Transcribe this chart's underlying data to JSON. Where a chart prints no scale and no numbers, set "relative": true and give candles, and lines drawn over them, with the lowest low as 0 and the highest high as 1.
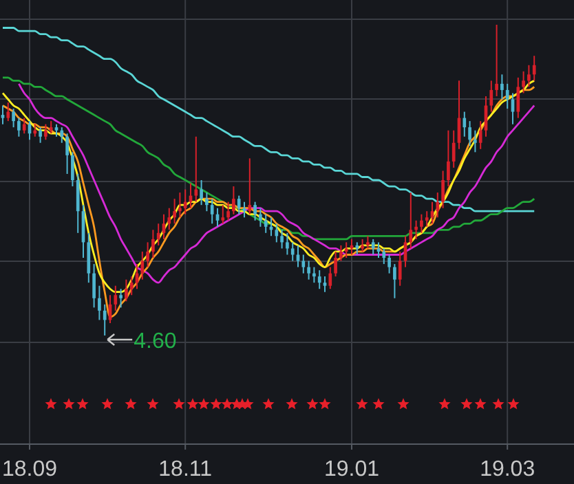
{
  "chart_data": {
    "type": "candlestick",
    "relative": true,
    "grid": true,
    "categories": [
      null,
      null,
      null,
      null,
      null,
      "18.09",
      null,
      null,
      null,
      null,
      null,
      null,
      null,
      null,
      null,
      null,
      null,
      null,
      null,
      null,
      null,
      null,
      null,
      null,
      null,
      null,
      null,
      null,
      null,
      null,
      null,
      null,
      null,
      null,
      "18.11",
      null,
      null,
      null,
      null,
      null,
      null,
      null,
      null,
      null,
      null,
      null,
      null,
      null,
      null,
      null,
      null,
      null,
      null,
      null,
      null,
      null,
      null,
      null,
      null,
      null,
      null,
      null,
      null,
      null,
      null,
      "19.01",
      null,
      null,
      null,
      null,
      null,
      null,
      null,
      null,
      null,
      null,
      null,
      null,
      null,
      null,
      null,
      null,
      null,
      null,
      null,
      null,
      null,
      null,
      null,
      null,
      null,
      null,
      null,
      null,
      "19.03",
      null,
      null,
      null,
      null,
      null
    ],
    "ohlc": [
      [
        0.71,
        0.74,
        0.68,
        0.7
      ],
      [
        0.7,
        0.75,
        0.69,
        0.72
      ],
      [
        0.72,
        0.73,
        0.67,
        0.69
      ],
      [
        0.69,
        0.7,
        0.64,
        0.66
      ],
      [
        0.66,
        0.7,
        0.65,
        0.68
      ],
      [
        0.68,
        0.69,
        0.63,
        0.65
      ],
      [
        0.65,
        0.68,
        0.64,
        0.66
      ],
      [
        0.66,
        0.67,
        0.62,
        0.64
      ],
      [
        0.64,
        0.68,
        0.63,
        0.66
      ],
      [
        0.66,
        0.69,
        0.65,
        0.67
      ],
      [
        0.67,
        0.68,
        0.64,
        0.66
      ],
      [
        0.66,
        0.67,
        0.62,
        0.64
      ],
      [
        0.64,
        0.65,
        0.52,
        0.58
      ],
      [
        0.58,
        0.59,
        0.48,
        0.5
      ],
      [
        0.5,
        0.52,
        0.33,
        0.4
      ],
      [
        0.4,
        0.42,
        0.25,
        0.3
      ],
      [
        0.3,
        0.33,
        0.17,
        0.2
      ],
      [
        0.2,
        0.23,
        0.09,
        0.12
      ],
      [
        0.12,
        0.16,
        0.05,
        0.08
      ],
      [
        0.08,
        0.1,
        0,
        0.05
      ],
      [
        0.05,
        0.13,
        0.04,
        0.1
      ],
      [
        0.1,
        0.16,
        0.08,
        0.13
      ],
      [
        0.13,
        0.15,
        0.09,
        0.12
      ],
      [
        0.12,
        0.18,
        0.11,
        0.15
      ],
      [
        0.15,
        0.19,
        0.13,
        0.17
      ],
      [
        0.17,
        0.23,
        0.15,
        0.2
      ],
      [
        0.2,
        0.27,
        0.18,
        0.24
      ],
      [
        0.24,
        0.3,
        0.22,
        0.27
      ],
      [
        0.27,
        0.34,
        0.25,
        0.31
      ],
      [
        0.31,
        0.36,
        0.29,
        0.33
      ],
      [
        0.33,
        0.39,
        0.31,
        0.36
      ],
      [
        0.36,
        0.41,
        0.34,
        0.38
      ],
      [
        0.38,
        0.44,
        0.36,
        0.4
      ],
      [
        0.4,
        0.46,
        0.38,
        0.41
      ],
      [
        0.41,
        0.47,
        0.39,
        0.43
      ],
      [
        0.43,
        0.49,
        0.41,
        0.45
      ],
      [
        0.45,
        0.64,
        0.43,
        0.47
      ],
      [
        0.47,
        0.5,
        0.42,
        0.44
      ],
      [
        0.44,
        0.46,
        0.4,
        0.42
      ],
      [
        0.42,
        0.44,
        0.36,
        0.39
      ],
      [
        0.39,
        0.41,
        0.35,
        0.37
      ],
      [
        0.37,
        0.42,
        0.36,
        0.38
      ],
      [
        0.38,
        0.43,
        0.37,
        0.4
      ],
      [
        0.4,
        0.48,
        0.39,
        0.44
      ],
      [
        0.44,
        0.45,
        0.39,
        0.41
      ],
      [
        0.41,
        0.43,
        0.38,
        0.4
      ],
      [
        0.4,
        0.57,
        0.39,
        0.42
      ],
      [
        0.42,
        0.43,
        0.37,
        0.39
      ],
      [
        0.39,
        0.41,
        0.35,
        0.37
      ],
      [
        0.37,
        0.39,
        0.33,
        0.35
      ],
      [
        0.35,
        0.38,
        0.32,
        0.34
      ],
      [
        0.34,
        0.36,
        0.3,
        0.32
      ],
      [
        0.32,
        0.34,
        0.28,
        0.3
      ],
      [
        0.3,
        0.33,
        0.26,
        0.28
      ],
      [
        0.28,
        0.3,
        0.24,
        0.26
      ],
      [
        0.26,
        0.29,
        0.22,
        0.24
      ],
      [
        0.24,
        0.26,
        0.2,
        0.22
      ],
      [
        0.22,
        0.24,
        0.18,
        0.2
      ],
      [
        0.2,
        0.22,
        0.17,
        0.19
      ],
      [
        0.19,
        0.21,
        0.15,
        0.17
      ],
      [
        0.17,
        0.19,
        0.14,
        0.16
      ],
      [
        0.16,
        0.22,
        0.15,
        0.2
      ],
      [
        0.2,
        0.27,
        0.19,
        0.25
      ],
      [
        0.25,
        0.29,
        0.24,
        0.27
      ],
      [
        0.27,
        0.3,
        0.25,
        0.28
      ],
      [
        0.28,
        0.31,
        0.26,
        0.29
      ],
      [
        0.29,
        0.3,
        0.26,
        0.28
      ],
      [
        0.28,
        0.31,
        0.27,
        0.29
      ],
      [
        0.29,
        0.32,
        0.28,
        0.3
      ],
      [
        0.3,
        0.31,
        0.26,
        0.28
      ],
      [
        0.28,
        0.3,
        0.25,
        0.27
      ],
      [
        0.27,
        0.28,
        0.23,
        0.25
      ],
      [
        0.25,
        0.26,
        0.2,
        0.22
      ],
      [
        0.22,
        0.23,
        0.12,
        0.18
      ],
      [
        0.18,
        0.27,
        0.16,
        0.24
      ],
      [
        0.24,
        0.32,
        0.22,
        0.3
      ],
      [
        0.3,
        0.46,
        0.28,
        0.34
      ],
      [
        0.34,
        0.37,
        0.31,
        0.35
      ],
      [
        0.35,
        0.39,
        0.33,
        0.37
      ],
      [
        0.37,
        0.4,
        0.35,
        0.38
      ],
      [
        0.38,
        0.43,
        0.36,
        0.4
      ],
      [
        0.4,
        0.46,
        0.38,
        0.43
      ],
      [
        0.43,
        0.53,
        0.41,
        0.5
      ],
      [
        0.5,
        0.66,
        0.48,
        0.56
      ],
      [
        0.56,
        0.66,
        0.54,
        0.62
      ],
      [
        0.62,
        0.82,
        0.6,
        0.7
      ],
      [
        0.7,
        0.72,
        0.64,
        0.67
      ],
      [
        0.67,
        0.69,
        0.61,
        0.63
      ],
      [
        0.63,
        0.66,
        0.59,
        0.62
      ],
      [
        0.62,
        0.69,
        0.6,
        0.66
      ],
      [
        0.66,
        0.77,
        0.64,
        0.74
      ],
      [
        0.74,
        0.82,
        0.72,
        0.79
      ],
      [
        0.79,
        1,
        0.77,
        0.81
      ],
      [
        0.81,
        0.84,
        0.76,
        0.79
      ],
      [
        0.79,
        0.81,
        0.73,
        0.76
      ],
      [
        0.76,
        0.78,
        0.68,
        0.72
      ],
      [
        0.72,
        0.83,
        0.7,
        0.8
      ],
      [
        0.8,
        0.85,
        0.78,
        0.82
      ],
      [
        0.82,
        0.87,
        0.8,
        0.84
      ],
      [
        0.84,
        0.9,
        0.82,
        0.87
      ]
    ],
    "series": [
      {
        "type": "line",
        "color": "#5ad6d6",
        "values": [
          0.99,
          0.99,
          0.99,
          0.98,
          0.98,
          0.98,
          0.98,
          0.97,
          0.97,
          0.96,
          0.96,
          0.95,
          0.95,
          0.94,
          0.93,
          0.93,
          0.92,
          0.91,
          0.9,
          0.89,
          0.89,
          0.88,
          0.86,
          0.85,
          0.84,
          0.82,
          0.81,
          0.8,
          0.79,
          0.77,
          0.76,
          0.75,
          0.74,
          0.73,
          0.72,
          0.71,
          0.7,
          0.7,
          0.69,
          0.68,
          0.67,
          0.66,
          0.65,
          0.64,
          0.64,
          0.63,
          0.62,
          0.61,
          0.61,
          0.6,
          0.59,
          0.59,
          0.58,
          0.58,
          0.57,
          0.57,
          0.56,
          0.56,
          0.55,
          0.55,
          0.54,
          0.54,
          0.53,
          0.53,
          0.52,
          0.52,
          0.52,
          0.51,
          0.51,
          0.5,
          0.5,
          0.49,
          0.48,
          0.48,
          0.47,
          0.47,
          0.46,
          0.45,
          0.45,
          0.44,
          0.44,
          0.43,
          0.43,
          0.43,
          0.42,
          0.42,
          0.41,
          0.41,
          0.4,
          0.4,
          0.4,
          0.4,
          0.4,
          0.4,
          0.4,
          0.4,
          0.4,
          0.4,
          0.4,
          0.4
        ]
      },
      {
        "type": "line",
        "color": "#22a83a",
        "values": [
          0.83,
          0.83,
          0.82,
          0.82,
          0.81,
          0.81,
          0.8,
          0.8,
          0.79,
          0.78,
          0.77,
          0.77,
          0.76,
          0.75,
          0.74,
          0.73,
          0.72,
          0.71,
          0.7,
          0.69,
          0.68,
          0.66,
          0.65,
          0.64,
          0.63,
          0.62,
          0.61,
          0.59,
          0.58,
          0.57,
          0.55,
          0.54,
          0.52,
          0.51,
          0.5,
          0.49,
          0.48,
          0.47,
          0.46,
          0.45,
          0.44,
          0.43,
          0.42,
          0.41,
          0.41,
          0.4,
          0.39,
          0.38,
          0.37,
          0.36,
          0.36,
          0.35,
          0.34,
          0.34,
          0.33,
          0.33,
          0.32,
          0.32,
          0.31,
          0.31,
          0.31,
          0.31,
          0.31,
          0.31,
          0.31,
          0.32,
          0.32,
          0.32,
          0.32,
          0.32,
          0.32,
          0.32,
          0.32,
          0.32,
          0.32,
          0.32,
          0.33,
          0.33,
          0.33,
          0.33,
          0.33,
          0.34,
          0.34,
          0.34,
          0.35,
          0.35,
          0.36,
          0.36,
          0.37,
          0.37,
          0.38,
          0.39,
          0.39,
          0.4,
          0.41,
          0.41,
          0.42,
          0.43,
          0.43,
          0.44
        ]
      },
      {
        "type": "line",
        "color": "#d62ad6",
        "values": [
          null,
          null,
          null,
          0.81,
          0.78,
          0.76,
          0.73,
          0.71,
          0.7,
          0.7,
          0.69,
          0.68,
          0.67,
          0.64,
          0.61,
          0.58,
          0.54,
          0.5,
          0.46,
          0.42,
          0.38,
          0.35,
          0.31,
          0.28,
          0.25,
          0.22,
          0.21,
          0.2,
          0.18,
          0.17,
          0.19,
          0.21,
          0.22,
          0.24,
          0.26,
          0.28,
          0.29,
          0.31,
          0.33,
          0.34,
          0.35,
          0.36,
          0.37,
          0.38,
          0.39,
          0.4,
          0.41,
          0.41,
          0.41,
          0.4,
          0.4,
          0.4,
          0.39,
          0.37,
          0.36,
          0.35,
          0.33,
          0.32,
          0.31,
          0.3,
          0.29,
          0.28,
          0.28,
          0.27,
          0.26,
          0.26,
          0.26,
          0.26,
          0.26,
          0.26,
          0.26,
          0.26,
          0.26,
          0.26,
          0.26,
          0.27,
          0.28,
          0.29,
          0.3,
          0.31,
          0.32,
          0.34,
          0.35,
          0.37,
          0.38,
          0.41,
          0.43,
          0.46,
          0.48,
          0.51,
          0.54,
          0.56,
          0.59,
          0.61,
          0.64,
          0.66,
          0.68,
          0.7,
          0.72,
          0.74
        ]
      },
      {
        "type": "line",
        "color": "#ff9a1f",
        "values": [
          0.74,
          0.73,
          0.72,
          0.7,
          0.69,
          0.68,
          0.68,
          0.67,
          0.67,
          0.66,
          0.65,
          0.65,
          0.64,
          0.6,
          0.56,
          0.49,
          0.42,
          0.35,
          0.24,
          0.14,
          0.06,
          0.07,
          0.1,
          0.12,
          0.15,
          0.17,
          0.2,
          0.22,
          0.25,
          0.27,
          0.3,
          0.33,
          0.35,
          0.38,
          0.4,
          0.41,
          0.43,
          0.44,
          0.44,
          0.44,
          0.43,
          0.43,
          0.42,
          0.42,
          0.41,
          0.41,
          0.41,
          0.4,
          0.4,
          0.39,
          0.38,
          0.36,
          0.35,
          0.34,
          0.32,
          0.31,
          0.29,
          0.28,
          0.26,
          0.24,
          0.22,
          0.23,
          0.24,
          0.25,
          0.26,
          0.26,
          0.27,
          0.27,
          0.28,
          0.28,
          0.28,
          0.27,
          0.27,
          0.27,
          0.28,
          0.29,
          0.3,
          0.32,
          0.33,
          0.35,
          0.36,
          0.4,
          0.43,
          0.47,
          0.5,
          0.54,
          0.58,
          0.62,
          0.64,
          0.66,
          0.69,
          0.71,
          0.74,
          0.76,
          0.77,
          0.77,
          0.78,
          0.79,
          0.79,
          0.8
        ]
      },
      {
        "type": "line",
        "color": "#ffee22",
        "values": [
          0.78,
          0.76,
          0.74,
          0.73,
          0.71,
          0.69,
          0.67,
          0.66,
          0.66,
          0.65,
          0.65,
          0.64,
          0.62,
          0.57,
          0.51,
          0.42,
          0.33,
          0.26,
          0.2,
          0.17,
          0.15,
          0.14,
          0.14,
          0.15,
          0.18,
          0.22,
          0.24,
          0.26,
          0.29,
          0.31,
          0.34,
          0.37,
          0.39,
          0.42,
          0.42,
          0.43,
          0.43,
          0.44,
          0.43,
          0.43,
          0.42,
          0.42,
          0.41,
          0.41,
          0.4,
          0.4,
          0.39,
          0.39,
          0.38,
          0.37,
          0.36,
          0.35,
          0.33,
          0.32,
          0.3,
          0.29,
          0.28,
          0.26,
          0.25,
          0.23,
          0.22,
          0.25,
          0.27,
          0.27,
          0.28,
          0.28,
          0.28,
          0.29,
          0.29,
          0.29,
          0.29,
          0.28,
          0.28,
          0.27,
          0.28,
          0.29,
          0.3,
          0.32,
          0.33,
          0.35,
          0.38,
          0.41,
          0.43,
          0.46,
          0.5,
          0.53,
          0.57,
          0.6,
          0.63,
          0.67,
          0.69,
          0.71,
          0.73,
          0.75,
          0.76,
          0.77,
          0.78,
          0.79,
          0.81,
          0.82
        ]
      }
    ],
    "annotations": [
      "4.60"
    ]
  }
}
